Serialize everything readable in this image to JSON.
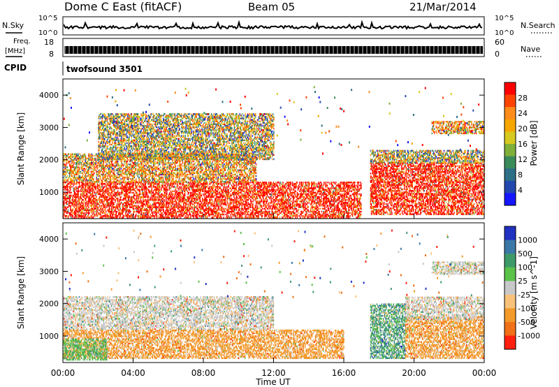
{
  "header": {
    "station": "Dome C East (fitACF)",
    "beam": "Beam 05",
    "date": "21/Mar/2014"
  },
  "top_panels": {
    "nsky_label": "N.Sky",
    "nsky_ticks": [
      "10^5",
      "10^0"
    ],
    "nsearch_label": "N.Search",
    "nsearch_ticks": [
      "10^5",
      "10^0"
    ],
    "freq_label": "Freq.",
    "freq_unit": "[MHz]",
    "freq_ticks": [
      "18",
      "8"
    ],
    "nave_label": "Nave",
    "nave_ticks": [
      "60",
      "0"
    ],
    "cpid_label": "CPID",
    "cpid_value": "twofsound 3501"
  },
  "chart_data": [
    {
      "type": "heatmap",
      "title": "",
      "ylabel": "Slant Range [km]",
      "xlabel": "",
      "ylim": [
        180,
        4500
      ],
      "yticks": [
        "4000",
        "3000",
        "2000",
        "1000"
      ],
      "colorbar": {
        "label": "Power [dB]",
        "ticks": [
          "28",
          "24",
          "20",
          "16",
          "12",
          "8",
          "4"
        ],
        "colors": [
          "#ff0000",
          "#ff4400",
          "#ff8c1a",
          "#f7a600",
          "#d6c91f",
          "#7fb03a",
          "#3a8a5a",
          "#2d6f86",
          "#2248b0",
          "#1515ff"
        ]
      },
      "regions": [
        {
          "t0": 0,
          "t1": 17,
          "r0": 200,
          "r1": 1300,
          "level": "high"
        },
        {
          "t0": 0,
          "t1": 11,
          "r0": 1300,
          "r1": 2200,
          "level": "medium"
        },
        {
          "t0": 2,
          "t1": 12,
          "r0": 2000,
          "r1": 3400,
          "level": "low"
        },
        {
          "t0": 17.5,
          "t1": 24,
          "r0": 300,
          "r1": 1900,
          "level": "high"
        },
        {
          "t0": 17.5,
          "t1": 24,
          "r0": 1900,
          "r1": 2300,
          "level": "low"
        },
        {
          "t0": 21,
          "t1": 24,
          "r0": 2800,
          "r1": 3200,
          "level": "medium"
        }
      ]
    },
    {
      "type": "heatmap",
      "title": "",
      "ylabel": "Slant Range [km]",
      "xlabel": "Time UT",
      "xlim": [
        0,
        24
      ],
      "xticks": [
        "00:00",
        "04:00",
        "08:00",
        "12:00",
        "16:00",
        "20:00",
        "00:00"
      ],
      "ylim": [
        180,
        4500
      ],
      "yticks": [
        "4000",
        "3000",
        "2000",
        "1000"
      ],
      "colorbar": {
        "label": "Velocity [m s^-1]",
        "ticks": [
          "1000",
          "500",
          "100",
          "25",
          "-25",
          "-100",
          "-500",
          "-1000"
        ],
        "colors": [
          "#2030c0",
          "#3a78a8",
          "#3f9a6a",
          "#5bc24a",
          "#c8c8c8",
          "#f8c27a",
          "#f39a2a",
          "#f07018",
          "#ff2010"
        ]
      },
      "regions": [
        {
          "t0": 0,
          "t1": 16,
          "r0": 300,
          "r1": 1200,
          "level": "orange"
        },
        {
          "t0": 0,
          "t1": 12,
          "r0": 1200,
          "r1": 2200,
          "level": "grey"
        },
        {
          "t0": 0,
          "t1": 2.5,
          "r0": 250,
          "r1": 900,
          "level": "green"
        },
        {
          "t0": 17.5,
          "t1": 19.5,
          "r0": 300,
          "r1": 2000,
          "level": "darkgreen"
        },
        {
          "t0": 19.5,
          "t1": 24,
          "r0": 300,
          "r1": 1600,
          "level": "orange"
        },
        {
          "t0": 19.5,
          "t1": 24,
          "r0": 1500,
          "r1": 2200,
          "level": "grey"
        },
        {
          "t0": 21,
          "t1": 24,
          "r0": 2900,
          "r1": 3300,
          "level": "grey"
        }
      ]
    }
  ]
}
